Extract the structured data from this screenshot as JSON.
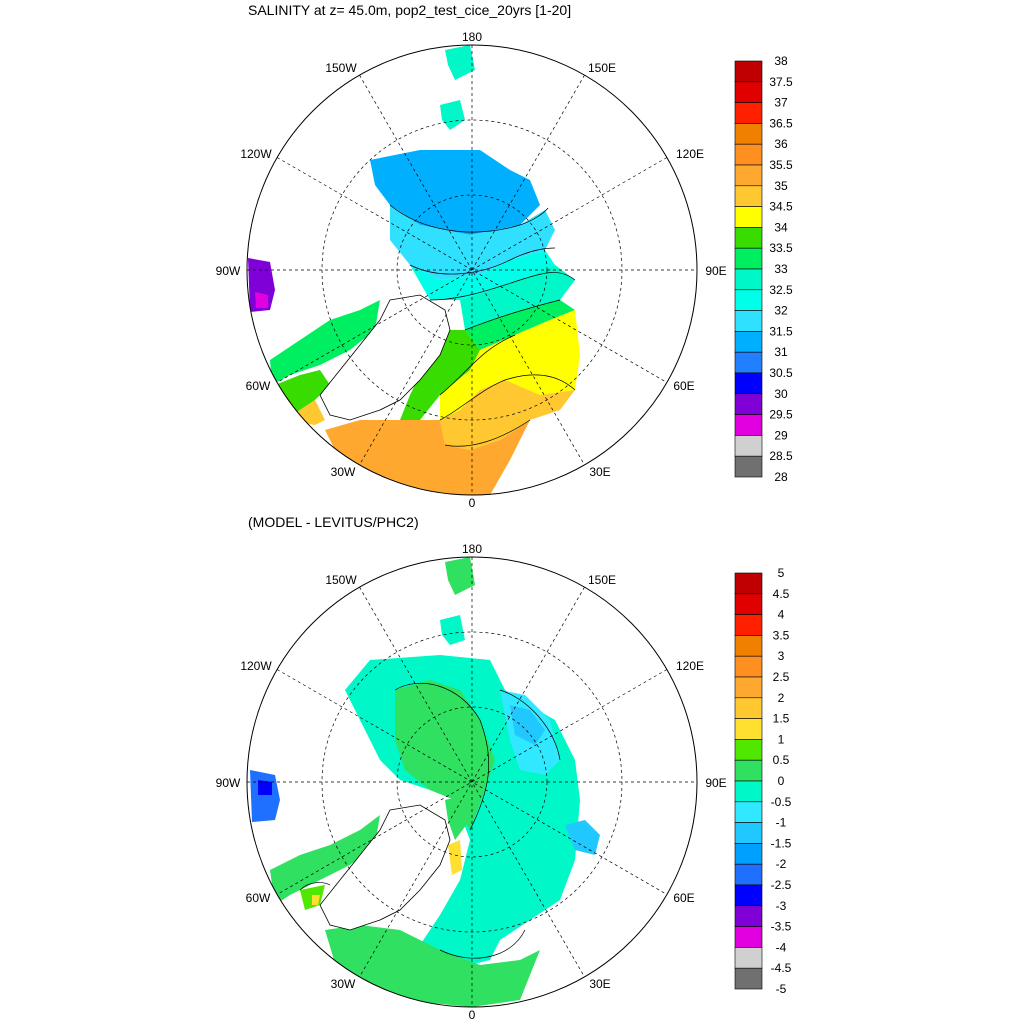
{
  "panels": [
    {
      "id": "top",
      "title": "SALINITY at z=  45.0m, pop2_test_cice_20yrs [1-20]",
      "lon_labels": {
        "180": "180",
        "150E": "150E",
        "120E": "120E",
        "90E": "90E",
        "60E": "60E",
        "30E": "30E",
        "0": "0",
        "30W": "30W",
        "60W": "60W",
        "90W": "90W",
        "120W": "120W",
        "150W": "150W"
      },
      "colorbar": {
        "levels": [
          "38",
          "37.5",
          "37",
          "36.5",
          "36",
          "35.5",
          "35",
          "34.5",
          "34",
          "33.5",
          "33",
          "32.5",
          "32",
          "31.5",
          "31",
          "30.5",
          "30",
          "29.5",
          "29",
          "28.5",
          "28"
        ],
        "colors": [
          "#c00000",
          "#e00000",
          "#ff2000",
          "#f08000",
          "#ff9020",
          "#ffa830",
          "#ffc830",
          "#ffff00",
          "#38dc00",
          "#00ef60",
          "#00f8c8",
          "#00ffe8",
          "#30e0ff",
          "#00b0ff",
          "#2080ff",
          "#0000ff",
          "#8000d8",
          "#e000e0",
          "#d0d0d0",
          "#707070"
        ]
      }
    },
    {
      "id": "bottom",
      "title": "(MODEL - LEVITUS/PHC2)",
      "lon_labels": {
        "180": "180",
        "150E": "150E",
        "120E": "120E",
        "90E": "90E",
        "60E": "60E",
        "30E": "30E",
        "0": "0",
        "30W": "30W",
        "60W": "60W",
        "90W": "90W",
        "120W": "120W",
        "150W": "150W"
      },
      "colorbar": {
        "levels": [
          "5",
          "4.5",
          "4",
          "3.5",
          "3",
          "2.5",
          "2",
          "1.5",
          "1",
          "0.5",
          "0",
          "-0.5",
          "-1",
          "-1.5",
          "-2",
          "-2.5",
          "-3",
          "-3.5",
          "-4",
          "-4.5",
          "-5"
        ],
        "colors": [
          "#c00000",
          "#e00000",
          "#ff2000",
          "#f08000",
          "#ff9020",
          "#ffa830",
          "#ffc830",
          "#ffe030",
          "#50e800",
          "#30e060",
          "#00f8c8",
          "#30e8ff",
          "#20c8ff",
          "#00a0ff",
          "#2070ff",
          "#0000ff",
          "#8000d8",
          "#e000e0",
          "#d0d0d0",
          "#707070"
        ]
      }
    }
  ]
}
